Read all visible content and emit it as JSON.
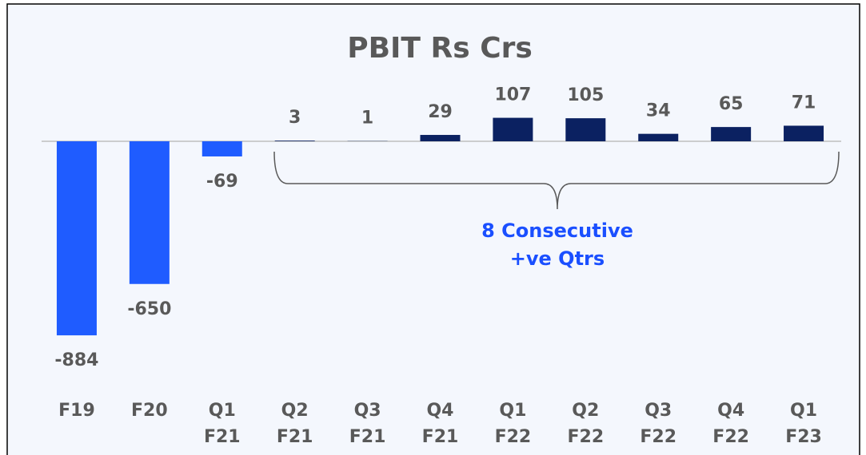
{
  "chart_data": {
    "type": "bar",
    "title": "PBIT Rs Crs",
    "categories": [
      [
        "F19"
      ],
      [
        "F20"
      ],
      [
        "Q1",
        "F21"
      ],
      [
        "Q2",
        "F21"
      ],
      [
        "Q3",
        "F21"
      ],
      [
        "Q4",
        "F21"
      ],
      [
        "Q1",
        "F22"
      ],
      [
        "Q2",
        "F22"
      ],
      [
        "Q3",
        "F22"
      ],
      [
        "Q4",
        "F22"
      ],
      [
        "Q1",
        "F23"
      ]
    ],
    "values": [
      -884,
      -650,
      -69,
      3,
      1,
      29,
      107,
      105,
      34,
      65,
      71
    ],
    "colors": [
      "#1f5cff",
      "#1f5cff",
      "#1f5cff",
      "#0b2161",
      "#0b2161",
      "#0b2161",
      "#0b2161",
      "#0b2161",
      "#0b2161",
      "#0b2161",
      "#0b2161"
    ],
    "ylim": [
      -1000,
      250
    ],
    "annotation": [
      "8 Consecutive",
      "+ve Qtrs"
    ],
    "annotation_color": "#1a4fff",
    "grid": false
  }
}
